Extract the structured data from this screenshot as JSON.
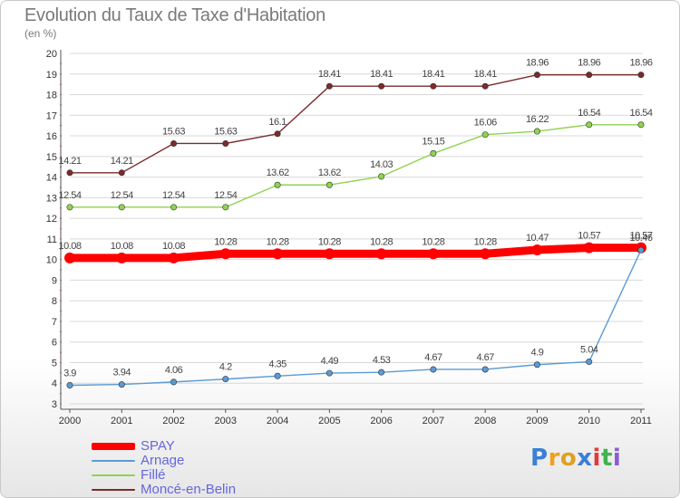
{
  "header": {
    "title": "Evolution du Taux de Taxe d'Habitation",
    "subtitle": "(en %)"
  },
  "colors": {
    "SPAY": "#ff0000",
    "Arnage": "#5b9bd5",
    "Fille": "#8ed44f",
    "Monce": "#7b2b2b",
    "grid": "#d8d8d8",
    "axis_text": "#333333",
    "label_text": "#444444",
    "legend_text": "#6666dd"
  },
  "chart_data": {
    "type": "line",
    "title": "Evolution du Taux de Taxe d'Habitation",
    "ylabel": "(en %)",
    "x": [
      "2000",
      "2001",
      "2002",
      "2003",
      "2004",
      "2005",
      "2006",
      "2007",
      "2008",
      "2009",
      "2010",
      "2011"
    ],
    "ylim": [
      3,
      20
    ],
    "yticks": [
      "3",
      "4",
      "5",
      "6",
      "7",
      "8",
      "9",
      "10",
      "11",
      "12",
      "13",
      "14",
      "15",
      "16",
      "17",
      "18",
      "19",
      "20"
    ],
    "grid": true,
    "legend_position": "bottom-left",
    "series": [
      {
        "name": "SPAY",
        "color": "#ff0000",
        "values": [
          10.08,
          10.08,
          10.08,
          10.28,
          10.28,
          10.28,
          10.28,
          10.28,
          10.28,
          10.47,
          10.57,
          10.57
        ],
        "labels": [
          "10.08",
          "10.08",
          "10.08",
          "10.28",
          "10.28",
          "10.28",
          "10.28",
          "10.28",
          "10.28",
          "10.47",
          "10.57",
          "10.57"
        ]
      },
      {
        "name": "Arnage",
        "color": "#5b9bd5",
        "values": [
          3.9,
          3.94,
          4.06,
          4.2,
          4.35,
          4.49,
          4.53,
          4.67,
          4.67,
          4.9,
          5.04,
          10.46
        ],
        "labels": [
          "3.9",
          "3.94",
          "4.06",
          "4.2",
          "4.35",
          "4.49",
          "4.53",
          "4.67",
          "4.67",
          "4.9",
          "5.04",
          "10.46"
        ]
      },
      {
        "name": "Fillé",
        "color": "#8ed44f",
        "values": [
          12.54,
          12.54,
          12.54,
          12.54,
          13.62,
          13.62,
          14.03,
          15.15,
          16.06,
          16.22,
          16.54,
          16.54
        ],
        "labels": [
          "12.54",
          "12.54",
          "12.54",
          "12.54",
          "13.62",
          "13.62",
          "14.03",
          "15.15",
          "16.06",
          "16.22",
          "16.54",
          "16.54"
        ]
      },
      {
        "name": "Moncé-en-Belin",
        "color": "#7b2b2b",
        "values": [
          14.21,
          14.21,
          15.63,
          15.63,
          16.1,
          18.41,
          18.41,
          18.41,
          18.41,
          18.96,
          18.96,
          18.96
        ],
        "labels": [
          "14.21",
          "14.21",
          "15.63",
          "15.63",
          "16.1",
          "18.41",
          "18.41",
          "18.41",
          "18.41",
          "18.96",
          "18.96",
          "18.96"
        ]
      }
    ]
  },
  "legend": {
    "items": [
      {
        "label": "SPAY",
        "color": "#ff0000"
      },
      {
        "label": "Arnage",
        "color": "#5b9bd5"
      },
      {
        "label": "Fillé",
        "color": "#8ed44f"
      },
      {
        "label": "Moncé-en-Belin",
        "color": "#7b2b2b"
      }
    ]
  },
  "logo": {
    "letters": [
      "P",
      "r",
      "o",
      "x",
      "i",
      "t",
      "i"
    ],
    "colors": [
      "#3a7fd5",
      "#f0a020",
      "#e0a020",
      "#3a7fd5",
      "#e23a3a",
      "#3fb34f",
      "#8c5bd6"
    ]
  }
}
